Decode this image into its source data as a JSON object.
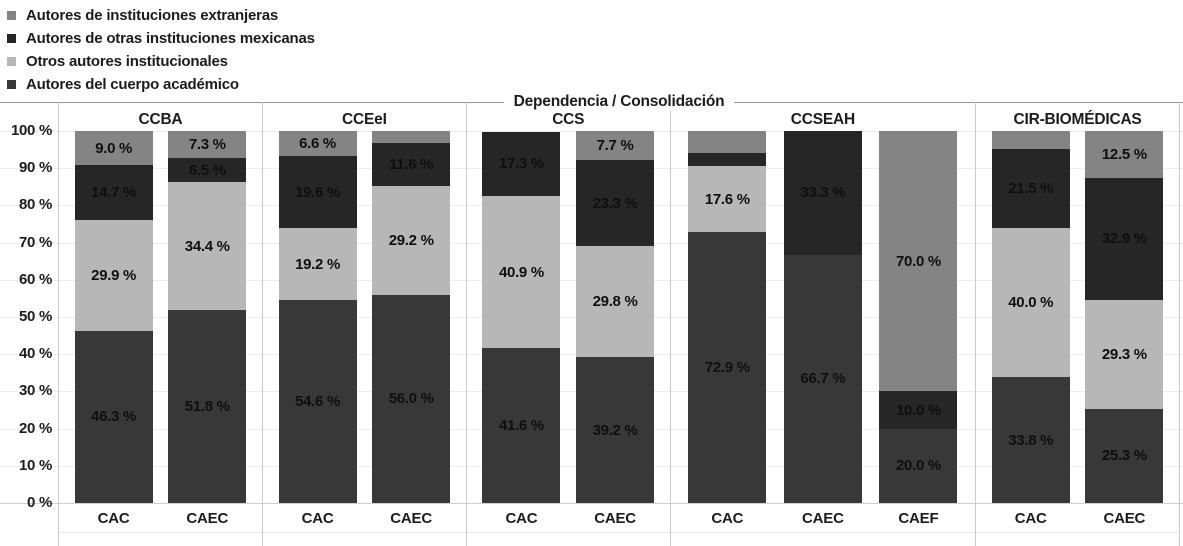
{
  "chart_data": {
    "type": "bar",
    "subtype": "100-percent-stacked-vertical",
    "title": "Dependencia / Consolidación",
    "legend_position": "top-left",
    "grid": "horizontal lines every 10%",
    "y_axis": {
      "min": 0,
      "max": 100,
      "unit": "%",
      "ticks": [
        "100 %",
        "90 %",
        "80 %",
        "70 %",
        "60 %",
        "50 %",
        "40 %",
        "30 %",
        "20 %",
        "10 %",
        "0 %"
      ]
    },
    "series": [
      {
        "key": "cuerpo",
        "label": "Autores del cuerpo académico",
        "color": "#383838"
      },
      {
        "key": "otros",
        "label": "Otros autores institucionales",
        "color": "#b7b7b7"
      },
      {
        "key": "mexicanas",
        "label": "Autores de otras instituciones mexicanas",
        "color": "#262626"
      },
      {
        "key": "extranjeras",
        "label": "Autores de instituciones extranjeras",
        "color": "#848484"
      }
    ],
    "legend_order": [
      "extranjeras",
      "mexicanas",
      "otros",
      "cuerpo"
    ],
    "groups": [
      {
        "name": "CCBA",
        "bars": [
          {
            "label": "CAC",
            "segments": [
              {
                "series": "cuerpo",
                "value": 46.3,
                "label": "46.3 %"
              },
              {
                "series": "otros",
                "value": 29.9,
                "label": "29.9 %"
              },
              {
                "series": "mexicanas",
                "value": 14.7,
                "label": "14.7 %"
              },
              {
                "series": "extranjeras",
                "value": 9.0,
                "label": "9.0 %"
              }
            ]
          },
          {
            "label": "CAEC",
            "segments": [
              {
                "series": "cuerpo",
                "value": 51.8,
                "label": "51.8 %"
              },
              {
                "series": "otros",
                "value": 34.4,
                "label": "34.4 %"
              },
              {
                "series": "mexicanas",
                "value": 6.5,
                "label": "6.5 %"
              },
              {
                "series": "extranjeras",
                "value": 7.3,
                "label": "7.3 %"
              }
            ]
          }
        ]
      },
      {
        "name": "CCEeI",
        "bars": [
          {
            "label": "CAC",
            "segments": [
              {
                "series": "cuerpo",
                "value": 54.6,
                "label": "54.6 %"
              },
              {
                "series": "otros",
                "value": 19.2,
                "label": "19.2 %"
              },
              {
                "series": "mexicanas",
                "value": 19.6,
                "label": "19.6 %"
              },
              {
                "series": "extranjeras",
                "value": 6.6,
                "label": "6.6 %"
              }
            ]
          },
          {
            "label": "CAEC",
            "segments": [
              {
                "series": "cuerpo",
                "value": 56.0,
                "label": "56.0 %"
              },
              {
                "series": "otros",
                "value": 29.2,
                "label": "29.2 %"
              },
              {
                "series": "mexicanas",
                "value": 11.6,
                "label": "11.6 %"
              },
              {
                "series": "extranjeras",
                "value": 3.2,
                "label": ""
              }
            ]
          }
        ]
      },
      {
        "name": "CCS",
        "bars": [
          {
            "label": "CAC",
            "segments": [
              {
                "series": "cuerpo",
                "value": 41.6,
                "label": "41.6 %"
              },
              {
                "series": "otros",
                "value": 40.9,
                "label": "40.9 %"
              },
              {
                "series": "mexicanas",
                "value": 17.3,
                "label": "17.3 %"
              }
            ]
          },
          {
            "label": "CAEC",
            "segments": [
              {
                "series": "cuerpo",
                "value": 39.2,
                "label": "39.2 %"
              },
              {
                "series": "otros",
                "value": 29.8,
                "label": "29.8 %"
              },
              {
                "series": "mexicanas",
                "value": 23.3,
                "label": "23.3 %"
              },
              {
                "series": "extranjeras",
                "value": 7.7,
                "label": "7.7 %"
              }
            ]
          }
        ]
      },
      {
        "name": "CCSEAH",
        "bars": [
          {
            "label": "CAC",
            "segments": [
              {
                "series": "cuerpo",
                "value": 72.9,
                "label": "72.9 %"
              },
              {
                "series": "otros",
                "value": 17.6,
                "label": "17.6 %"
              },
              {
                "series": "mexicanas",
                "value": 3.5,
                "label": ""
              },
              {
                "series": "extranjeras",
                "value": 5.9,
                "label": ""
              }
            ]
          },
          {
            "label": "CAEC",
            "segments": [
              {
                "series": "cuerpo",
                "value": 66.7,
                "label": "66.7 %"
              },
              {
                "series": "mexicanas",
                "value": 33.3,
                "label": "33.3 %"
              }
            ]
          },
          {
            "label": "CAEF",
            "segments": [
              {
                "series": "cuerpo",
                "value": 20.0,
                "label": "20.0 %"
              },
              {
                "series": "mexicanas",
                "value": 10.0,
                "label": "10.0 %"
              },
              {
                "series": "extranjeras",
                "value": 70.0,
                "label": "70.0 %"
              }
            ]
          }
        ]
      },
      {
        "name": "CIR-BIOMÉDICAS",
        "bars": [
          {
            "label": "CAC",
            "segments": [
              {
                "series": "cuerpo",
                "value": 33.8,
                "label": "33.8 %"
              },
              {
                "series": "otros",
                "value": 40.0,
                "label": "40.0 %"
              },
              {
                "series": "mexicanas",
                "value": 21.5,
                "label": "21.5 %"
              },
              {
                "series": "extranjeras",
                "value": 4.6,
                "label": ""
              }
            ]
          },
          {
            "label": "CAEC",
            "segments": [
              {
                "series": "cuerpo",
                "value": 25.3,
                "label": "25.3 %"
              },
              {
                "series": "otros",
                "value": 29.3,
                "label": "29.3 %"
              },
              {
                "series": "mexicanas",
                "value": 32.9,
                "label": "32.9 %"
              },
              {
                "series": "extranjeras",
                "value": 12.5,
                "label": "12.5 %"
              }
            ]
          }
        ]
      }
    ]
  }
}
